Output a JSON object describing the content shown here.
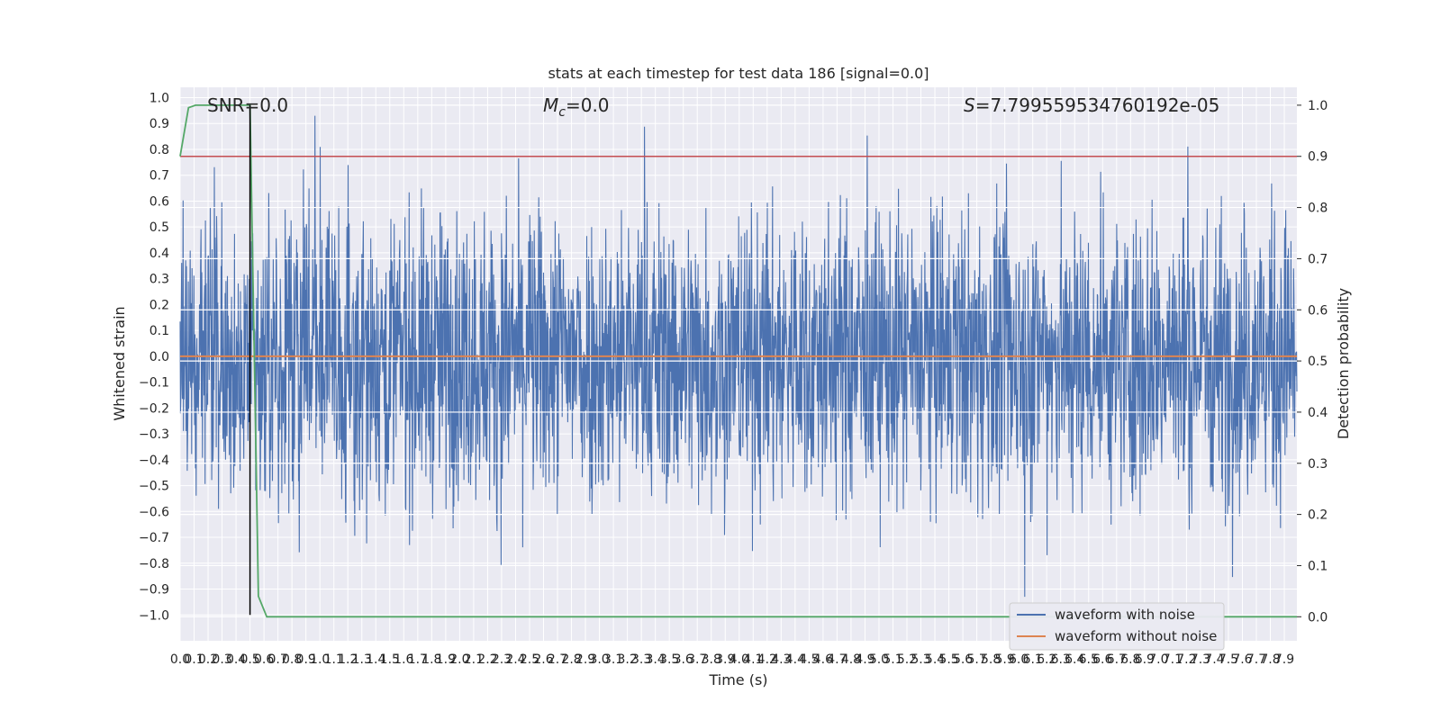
{
  "chart_data": {
    "type": "line",
    "title": "stats at each timestep for test data 186 [signal=0.0]",
    "xlabel": "Time (s)",
    "ylabel_left": "Whitened strain",
    "ylabel_right": "Detection probability",
    "xlim": [
      0.0,
      7.99
    ],
    "ylim_left": [
      -1.1,
      1.04
    ],
    "ylim_right": [
      -0.047,
      1.035
    ],
    "x_ticks": [
      "0.0",
      "0.1",
      "0.2",
      "0.3",
      "0.4",
      "0.5",
      "0.6",
      "0.7",
      "0.8",
      "0.9",
      "1.0",
      "1.1",
      "1.2",
      "1.3",
      "1.4",
      "1.5",
      "1.6",
      "1.7",
      "1.8",
      "1.9",
      "2.0",
      "2.1",
      "2.2",
      "2.3",
      "2.4",
      "2.5",
      "2.6",
      "2.7",
      "2.8",
      "2.9",
      "3.0",
      "3.1",
      "3.2",
      "3.3",
      "3.4",
      "3.5",
      "3.6",
      "3.7",
      "3.8",
      "3.9",
      "4.0",
      "4.1",
      "4.2",
      "4.3",
      "4.4",
      "4.5",
      "4.6",
      "4.7",
      "4.8",
      "4.9",
      "5.0",
      "5.1",
      "5.2",
      "5.3",
      "5.4",
      "5.5",
      "5.6",
      "5.7",
      "5.8",
      "5.9",
      "6.0",
      "6.1",
      "6.2",
      "6.3",
      "6.4",
      "6.5",
      "6.6",
      "6.7",
      "6.8",
      "6.9",
      "7.0",
      "7.1",
      "7.2",
      "7.3",
      "7.4",
      "7.5",
      "7.6",
      "7.7",
      "7.8",
      "7.9"
    ],
    "y_ticks_left": [
      "1.0",
      "0.9",
      "0.8",
      "0.7",
      "0.6",
      "0.5",
      "0.4",
      "0.3",
      "0.2",
      "0.1",
      "0.0",
      "−0.1",
      "−0.2",
      "−0.3",
      "−0.4",
      "−0.5",
      "−0.6",
      "−0.7",
      "−0.8",
      "−0.9",
      "−1.0"
    ],
    "y_ticks_right": [
      "1.0",
      "0.9",
      "0.8",
      "0.7",
      "0.6",
      "0.5",
      "0.4",
      "0.3",
      "0.2",
      "0.1",
      "0.0"
    ],
    "annotations": {
      "snr": "SNR=0.0",
      "mc_symbol": "M",
      "mc_sub": "c",
      "mc_value": "=0.0",
      "s_symbol": "S",
      "s_value": "=7.799559534760192e-05"
    },
    "series": [
      {
        "name": "waveform with noise",
        "color": "#4c72b0",
        "note_style": "dense noisy strain, roughly within ±0.65 with spikes to ±0.93"
      },
      {
        "name": "waveform without noise",
        "color": "#dd8452",
        "values_constant": 0.0
      }
    ],
    "detection_probability": {
      "color": "#55a868",
      "x": [
        0.0,
        0.06,
        0.11,
        0.16,
        0.5,
        0.56,
        0.62,
        7.99
      ],
      "y": [
        0.9,
        0.995,
        1.0,
        1.0,
        1.0,
        0.04,
        0.0,
        0.0
      ]
    },
    "threshold": {
      "color": "#c44e52",
      "value": 0.9
    },
    "marker_line": {
      "color": "#000000",
      "x": 0.5
    },
    "legend_position": "lower-right",
    "grid": true
  }
}
